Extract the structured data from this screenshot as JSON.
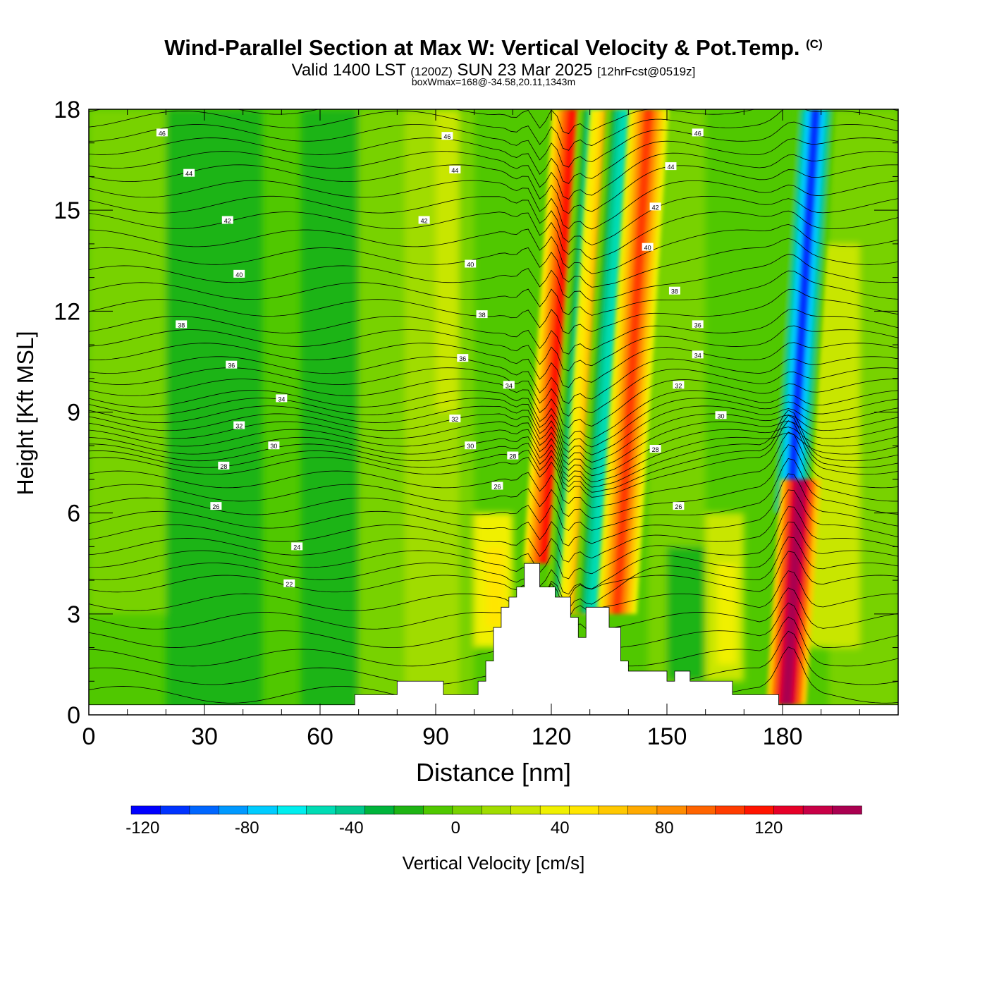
{
  "title": {
    "main": "Wind-Parallel Section at Max W: Vertical Velocity & Pot.Temp.",
    "copyright": "(C)",
    "valid_prefix": "Valid 1400 LST",
    "valid_utc": "(1200Z)",
    "valid_date": "SUN 23 Mar 2025",
    "forecast": "[12hrFcst@0519z]",
    "box_wmax": "boxWmax=168@-34.58,20.11,1343m"
  },
  "chart_data": {
    "type": "heatmap",
    "xlabel": "Distance [nm]",
    "ylabel": "Height [Kft MSL]",
    "xlim": [
      0,
      210
    ],
    "ylim": [
      0,
      18
    ],
    "x_ticks": [
      "0",
      "30",
      "60",
      "90",
      "120",
      "150",
      "180"
    ],
    "y_ticks": [
      "0",
      "3",
      "6",
      "9",
      "12",
      "15",
      "18"
    ],
    "colorbar": {
      "label": "Vertical Velocity [cm/s]",
      "ticks": [
        "-120",
        "-80",
        "-40",
        "0",
        "40",
        "80",
        "120"
      ],
      "min": -130,
      "max": 150,
      "step": 10,
      "colors": [
        "#0000ff",
        "#0033ff",
        "#0066ff",
        "#0099ff",
        "#00ccff",
        "#00eeee",
        "#00dcb4",
        "#00c88c",
        "#00b43c",
        "#1eb414",
        "#50c800",
        "#78d200",
        "#a0dc00",
        "#c8e600",
        "#f0f000",
        "#ffe600",
        "#ffc800",
        "#ffaa00",
        "#ff8c00",
        "#ff6400",
        "#ff3c00",
        "#ff1400",
        "#e60028",
        "#c80046",
        "#aa0050"
      ]
    },
    "terrain_profile_kft": [
      [
        0,
        0.3
      ],
      [
        69,
        0.3
      ],
      [
        69,
        0.6
      ],
      [
        80,
        0.6
      ],
      [
        80,
        1.0
      ],
      [
        92,
        1.0
      ],
      [
        92,
        0.6
      ],
      [
        101,
        0.6
      ],
      [
        101,
        1.0
      ],
      [
        103,
        1.0
      ],
      [
        103,
        1.6
      ],
      [
        105,
        1.6
      ],
      [
        105,
        2.6
      ],
      [
        107,
        2.6
      ],
      [
        107,
        3.2
      ],
      [
        109,
        3.2
      ],
      [
        109,
        3.5
      ],
      [
        111,
        3.5
      ],
      [
        111,
        3.8
      ],
      [
        113,
        3.8
      ],
      [
        113,
        4.5
      ],
      [
        117,
        4.5
      ],
      [
        117,
        3.8
      ],
      [
        121,
        3.8
      ],
      [
        121,
        3.5
      ],
      [
        125,
        3.5
      ],
      [
        125,
        2.9
      ],
      [
        127,
        2.9
      ],
      [
        127,
        2.3
      ],
      [
        129,
        2.3
      ],
      [
        129,
        3.2
      ],
      [
        135,
        3.2
      ],
      [
        135,
        2.6
      ],
      [
        138,
        2.6
      ],
      [
        138,
        1.6
      ],
      [
        140,
        1.6
      ],
      [
        140,
        1.3
      ],
      [
        150,
        1.3
      ],
      [
        150,
        1.0
      ],
      [
        152,
        1.0
      ],
      [
        152,
        1.3
      ],
      [
        156,
        1.3
      ],
      [
        156,
        1.0
      ],
      [
        167,
        1.0
      ],
      [
        167,
        0.6
      ],
      [
        179,
        0.6
      ],
      [
        179,
        0.3
      ],
      [
        210,
        0.3
      ]
    ],
    "w_features": [
      {
        "type": "updraft",
        "x": 118,
        "z_bottom": 4.5,
        "z_top": 18,
        "peak_cm_s": 80
      },
      {
        "type": "downdraft",
        "x": 124,
        "z_bottom": 3.5,
        "z_top": 18,
        "peak_cm_s": -70
      },
      {
        "type": "updraft",
        "x": 127,
        "z_bottom": 3.0,
        "z_top": 18,
        "peak_cm_s": 50
      },
      {
        "type": "downdraft",
        "x": 131,
        "z_bottom": 3.0,
        "z_top": 18,
        "peak_cm_s": -70
      },
      {
        "type": "updraft",
        "x": 137,
        "z_bottom": 3.0,
        "z_top": 18,
        "peak_cm_s": 70
      },
      {
        "type": "downdraft",
        "x": 182,
        "z_bottom": 6.0,
        "z_top": 18,
        "peak_cm_s": -120
      },
      {
        "type": "updraft",
        "x": 181,
        "z_bottom": 0.3,
        "z_top": 7.0,
        "peak_cm_s": 130
      }
    ],
    "theta_levels": [
      {
        "value": "22",
        "z": 3.9
      },
      {
        "value": "24",
        "z": 5.0
      },
      {
        "value": "26",
        "z": 6.2
      },
      {
        "value": "28",
        "z": 7.4
      },
      {
        "value": "30",
        "z": 8.0
      },
      {
        "value": "32",
        "z": 8.7
      },
      {
        "value": "34",
        "z": 9.4
      },
      {
        "value": "36",
        "z": 10.4
      },
      {
        "value": "38",
        "z": 11.6
      },
      {
        "value": "40",
        "z": 13.1
      },
      {
        "value": "42",
        "z": 14.7
      },
      {
        "value": "44",
        "z": 16.1
      },
      {
        "value": "46",
        "z": 17.3
      }
    ],
    "theta_labels": [
      {
        "text": "46",
        "x": 19,
        "z": 17.3
      },
      {
        "text": "44",
        "x": 26,
        "z": 16.1
      },
      {
        "text": "42",
        "x": 36,
        "z": 14.7
      },
      {
        "text": "40",
        "x": 39,
        "z": 13.1
      },
      {
        "text": "38",
        "x": 24,
        "z": 11.6
      },
      {
        "text": "36",
        "x": 37,
        "z": 10.4
      },
      {
        "text": "34",
        "x": 50,
        "z": 9.4
      },
      {
        "text": "32",
        "x": 39,
        "z": 8.6
      },
      {
        "text": "30",
        "x": 48,
        "z": 8.0
      },
      {
        "text": "28",
        "x": 35,
        "z": 7.4
      },
      {
        "text": "26",
        "x": 33,
        "z": 6.2
      },
      {
        "text": "24",
        "x": 54,
        "z": 5.0
      },
      {
        "text": "22",
        "x": 52,
        "z": 3.9
      },
      {
        "text": "46",
        "x": 93,
        "z": 17.2
      },
      {
        "text": "44",
        "x": 95,
        "z": 16.2
      },
      {
        "text": "42",
        "x": 87,
        "z": 14.7
      },
      {
        "text": "40",
        "x": 99,
        "z": 13.4
      },
      {
        "text": "38",
        "x": 102,
        "z": 11.9
      },
      {
        "text": "36",
        "x": 97,
        "z": 10.6
      },
      {
        "text": "34",
        "x": 109,
        "z": 9.8
      },
      {
        "text": "32",
        "x": 95,
        "z": 8.8
      },
      {
        "text": "30",
        "x": 99,
        "z": 8.0
      },
      {
        "text": "28",
        "x": 110,
        "z": 7.7
      },
      {
        "text": "26",
        "x": 106,
        "z": 6.8
      },
      {
        "text": "46",
        "x": 158,
        "z": 17.3
      },
      {
        "text": "44",
        "x": 151,
        "z": 16.3
      },
      {
        "text": "42",
        "x": 147,
        "z": 15.1
      },
      {
        "text": "40",
        "x": 145,
        "z": 13.9
      },
      {
        "text": "38",
        "x": 152,
        "z": 12.6
      },
      {
        "text": "36",
        "x": 158,
        "z": 11.6
      },
      {
        "text": "34",
        "x": 158,
        "z": 10.7
      },
      {
        "text": "32",
        "x": 153,
        "z": 9.8
      },
      {
        "text": "30",
        "x": 164,
        "z": 8.9
      },
      {
        "text": "28",
        "x": 147,
        "z": 7.9
      },
      {
        "text": "26",
        "x": 153,
        "z": 6.2
      }
    ]
  }
}
